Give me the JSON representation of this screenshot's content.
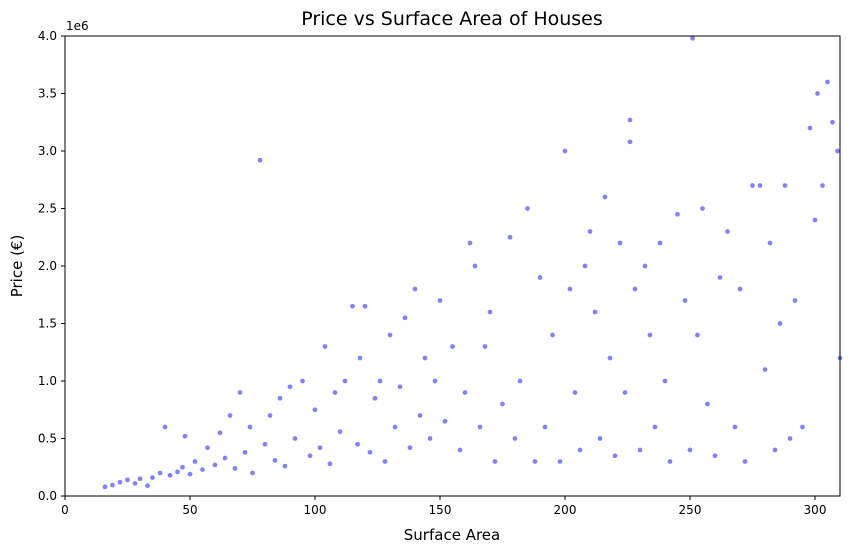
{
  "chart_data": {
    "type": "scatter",
    "title": "Price vs Surface Area of Houses",
    "xlabel": "Surface Area",
    "ylabel": "Price (€)",
    "y_offset_label": "1e6",
    "xlim": [
      0,
      310
    ],
    "ylim": [
      0,
      4000000
    ],
    "x_ticks": [
      0,
      50,
      100,
      150,
      200,
      250,
      300
    ],
    "y_ticks": [
      0,
      500000,
      1000000,
      1500000,
      2000000,
      2500000,
      3000000,
      3500000,
      4000000
    ],
    "x_tick_labels": [
      "0",
      "50",
      "100",
      "150",
      "200",
      "250",
      "300"
    ],
    "y_tick_labels": [
      "0.0",
      "0.5",
      "1.0",
      "1.5",
      "2.0",
      "2.5",
      "3.0",
      "3.5",
      "4.0"
    ],
    "grid": false,
    "legend": "none",
    "colors": {
      "marker": "#4d4df2",
      "marker_edge": "#ffffff"
    },
    "series": [
      {
        "points": [
          [
            16,
            80000
          ],
          [
            19,
            95000
          ],
          [
            22,
            120000
          ],
          [
            25,
            140000
          ],
          [
            28,
            110000
          ],
          [
            30,
            150000
          ],
          [
            33,
            90000
          ],
          [
            35,
            160000
          ],
          [
            38,
            200000
          ],
          [
            40,
            600000
          ],
          [
            42,
            180000
          ],
          [
            45,
            210000
          ],
          [
            47,
            250000
          ],
          [
            48,
            520000
          ],
          [
            50,
            190000
          ],
          [
            52,
            300000
          ],
          [
            55,
            230000
          ],
          [
            57,
            420000
          ],
          [
            60,
            270000
          ],
          [
            62,
            550000
          ],
          [
            64,
            330000
          ],
          [
            66,
            700000
          ],
          [
            68,
            240000
          ],
          [
            70,
            900000
          ],
          [
            72,
            380000
          ],
          [
            74,
            600000
          ],
          [
            75,
            200000
          ],
          [
            78,
            2920000
          ],
          [
            80,
            450000
          ],
          [
            82,
            700000
          ],
          [
            84,
            310000
          ],
          [
            86,
            850000
          ],
          [
            88,
            260000
          ],
          [
            90,
            950000
          ],
          [
            92,
            500000
          ],
          [
            95,
            1000000
          ],
          [
            98,
            350000
          ],
          [
            100,
            750000
          ],
          [
            102,
            420000
          ],
          [
            104,
            1300000
          ],
          [
            106,
            280000
          ],
          [
            108,
            900000
          ],
          [
            110,
            560000
          ],
          [
            112,
            1000000
          ],
          [
            115,
            1650000
          ],
          [
            117,
            450000
          ],
          [
            118,
            1200000
          ],
          [
            120,
            1650000
          ],
          [
            122,
            380000
          ],
          [
            124,
            850000
          ],
          [
            126,
            1000000
          ],
          [
            128,
            300000
          ],
          [
            130,
            1400000
          ],
          [
            132,
            600000
          ],
          [
            134,
            950000
          ],
          [
            136,
            1550000
          ],
          [
            138,
            420000
          ],
          [
            140,
            1800000
          ],
          [
            142,
            700000
          ],
          [
            144,
            1200000
          ],
          [
            146,
            500000
          ],
          [
            148,
            1000000
          ],
          [
            150,
            1700000
          ],
          [
            152,
            650000
          ],
          [
            155,
            1300000
          ],
          [
            158,
            400000
          ],
          [
            160,
            900000
          ],
          [
            162,
            2200000
          ],
          [
            164,
            2000000
          ],
          [
            166,
            600000
          ],
          [
            168,
            1300000
          ],
          [
            170,
            1600000
          ],
          [
            172,
            300000
          ],
          [
            175,
            800000
          ],
          [
            178,
            2250000
          ],
          [
            180,
            500000
          ],
          [
            182,
            1000000
          ],
          [
            185,
            2500000
          ],
          [
            188,
            300000
          ],
          [
            190,
            1900000
          ],
          [
            192,
            600000
          ],
          [
            195,
            1400000
          ],
          [
            198,
            300000
          ],
          [
            200,
            3000000
          ],
          [
            202,
            1800000
          ],
          [
            204,
            900000
          ],
          [
            206,
            400000
          ],
          [
            208,
            2000000
          ],
          [
            210,
            2300000
          ],
          [
            212,
            1600000
          ],
          [
            214,
            500000
          ],
          [
            216,
            2600000
          ],
          [
            218,
            1200000
          ],
          [
            220,
            350000
          ],
          [
            222,
            2200000
          ],
          [
            224,
            900000
          ],
          [
            226,
            3270000
          ],
          [
            226,
            3080000
          ],
          [
            228,
            1800000
          ],
          [
            230,
            400000
          ],
          [
            232,
            2000000
          ],
          [
            234,
            1400000
          ],
          [
            236,
            600000
          ],
          [
            238,
            2200000
          ],
          [
            240,
            1000000
          ],
          [
            242,
            300000
          ],
          [
            245,
            2450000
          ],
          [
            248,
            1700000
          ],
          [
            250,
            400000
          ],
          [
            251,
            3980000
          ],
          [
            253,
            1400000
          ],
          [
            255,
            2500000
          ],
          [
            257,
            800000
          ],
          [
            260,
            350000
          ],
          [
            262,
            1900000
          ],
          [
            265,
            2300000
          ],
          [
            268,
            600000
          ],
          [
            270,
            1800000
          ],
          [
            272,
            300000
          ],
          [
            275,
            2700000
          ],
          [
            278,
            2700000
          ],
          [
            280,
            1100000
          ],
          [
            282,
            2200000
          ],
          [
            284,
            400000
          ],
          [
            286,
            1500000
          ],
          [
            288,
            2700000
          ],
          [
            290,
            500000
          ],
          [
            292,
            1700000
          ],
          [
            295,
            600000
          ],
          [
            298,
            3200000
          ],
          [
            300,
            2400000
          ],
          [
            301,
            3500000
          ],
          [
            303,
            2700000
          ],
          [
            305,
            3600000
          ],
          [
            307,
            3250000
          ],
          [
            309,
            3000000
          ],
          [
            310,
            1200000
          ]
        ]
      }
    ]
  }
}
